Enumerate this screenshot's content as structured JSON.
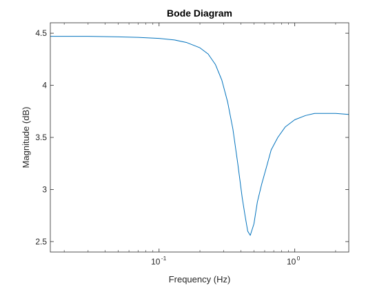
{
  "chart_data": {
    "type": "line",
    "title": "Bode Diagram",
    "xlabel": "Frequency (Hz)",
    "ylabel": "Magnitude (dB)",
    "xscale": "log",
    "xlim": [
      0.0158,
      2.5
    ],
    "ylim": [
      2.4,
      4.6
    ],
    "grid": false,
    "x_ticks": [
      {
        "value": 0.1,
        "base": "10",
        "exp": "-1"
      },
      {
        "value": 1,
        "base": "10",
        "exp": "0"
      }
    ],
    "y_ticks": [
      {
        "value": 2.5,
        "label": "2.5"
      },
      {
        "value": 3,
        "label": "3"
      },
      {
        "value": 3.5,
        "label": "3.5"
      },
      {
        "value": 4,
        "label": "4"
      },
      {
        "value": 4.5,
        "label": "4.5"
      }
    ],
    "series": [
      {
        "color": "#0072BD",
        "x": [
          0.0158,
          0.02,
          0.03,
          0.05,
          0.07,
          0.1,
          0.13,
          0.16,
          0.2,
          0.23,
          0.26,
          0.29,
          0.32,
          0.35,
          0.38,
          0.41,
          0.43,
          0.45,
          0.47,
          0.5,
          0.53,
          0.57,
          0.62,
          0.67,
          0.75,
          0.85,
          1.0,
          1.2,
          1.4,
          1.7,
          2.0,
          2.5
        ],
        "y": [
          4.47,
          4.47,
          4.47,
          4.465,
          4.46,
          4.45,
          4.435,
          4.41,
          4.36,
          4.3,
          4.2,
          4.05,
          3.84,
          3.58,
          3.25,
          2.92,
          2.75,
          2.6,
          2.56,
          2.67,
          2.88,
          3.05,
          3.22,
          3.38,
          3.5,
          3.6,
          3.67,
          3.71,
          3.73,
          3.73,
          3.73,
          3.72
        ]
      }
    ]
  }
}
